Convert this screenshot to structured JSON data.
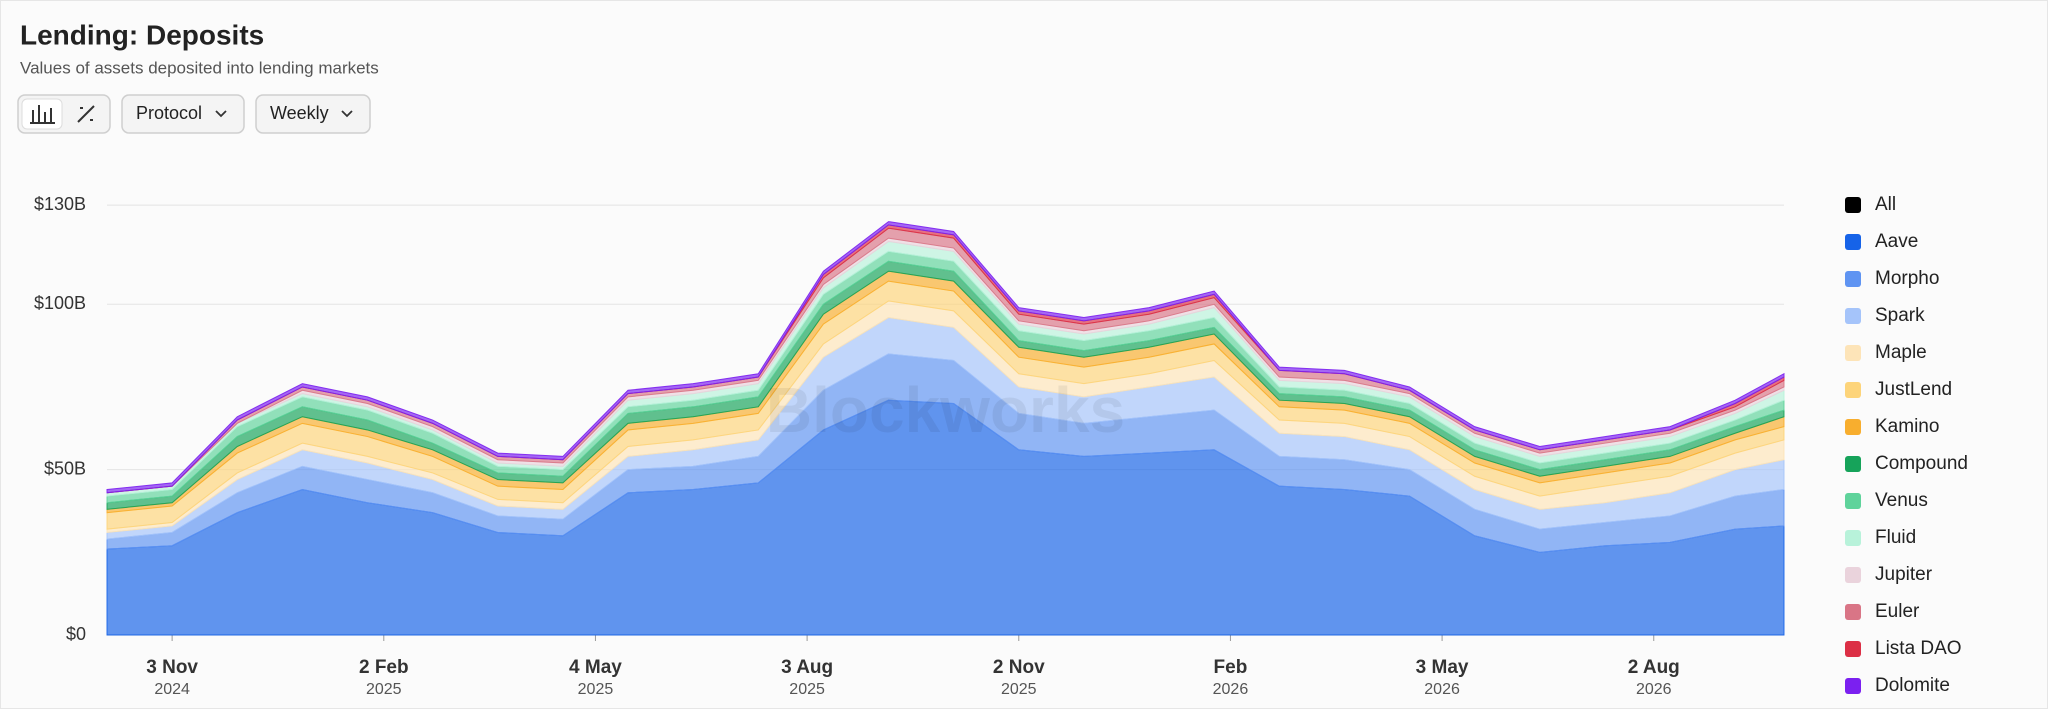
{
  "chart_data": {
    "type": "stacked_area",
    "title": "Lending: Deposits",
    "subtitle": "Values of assets deposited into lending markets",
    "controls": {
      "group": "Protocol",
      "interval": "Weekly"
    },
    "watermark": "Blockworks",
    "legend_all": {
      "name": "All",
      "color": "#000000"
    },
    "x": [
      "2024-10-06",
      "2024-11-03",
      "2024-12-01",
      "2024-12-29",
      "2025-01-26",
      "2025-02-23",
      "2025-03-23",
      "2025-04-20",
      "2025-05-18",
      "2025-06-15",
      "2025-07-13",
      "2025-08-10",
      "2025-09-07",
      "2025-10-05",
      "2025-11-02",
      "2025-11-30",
      "2025-12-28",
      "2026-01-25",
      "2026-02-22",
      "2026-03-22",
      "2026-04-19",
      "2026-05-17",
      "2026-06-14",
      "2026-07-12",
      "2026-08-09",
      "2026-09-06",
      "2026-09-27"
    ],
    "xlim": [
      "2024-10-06",
      "2026-09-27"
    ],
    "xticks": [
      {
        "value": "2024-11-03",
        "label": "3 Nov",
        "sublabel": "2024"
      },
      {
        "value": "2025-02-02",
        "label": "2 Feb",
        "sublabel": "2025"
      },
      {
        "value": "2025-05-04",
        "label": "4 May",
        "sublabel": "2025"
      },
      {
        "value": "2025-08-03",
        "label": "3 Aug",
        "sublabel": "2025"
      },
      {
        "value": "2025-11-02",
        "label": "2 Nov",
        "sublabel": "2025"
      },
      {
        "value": "2026-02-01",
        "label": "Feb",
        "sublabel": "2026"
      },
      {
        "value": "2026-05-03",
        "label": "3 May",
        "sublabel": "2026"
      },
      {
        "value": "2026-08-02",
        "label": "2 Aug",
        "sublabel": "2026"
      }
    ],
    "ylim": [
      0,
      140
    ],
    "yticks": [
      {
        "value": 0,
        "label": "$0"
      },
      {
        "value": 50,
        "label": "$50B"
      },
      {
        "value": 100,
        "label": "$100B"
      },
      {
        "value": 130,
        "label": "$130B"
      }
    ],
    "grid": true,
    "legend": "right",
    "series": [
      {
        "name": "Aave",
        "color": "#1663e8",
        "values": [
          26,
          27,
          37,
          44,
          40,
          37,
          31,
          30,
          43,
          44,
          46,
          62,
          71,
          70,
          56,
          54,
          55,
          56,
          45,
          44,
          42,
          30,
          25,
          27,
          28,
          32,
          33
        ]
      },
      {
        "name": "Morpho",
        "color": "#5f94f2",
        "values": [
          3,
          4,
          6,
          7,
          7,
          6,
          5,
          5,
          7,
          7,
          8,
          12,
          14,
          13,
          11,
          10,
          11,
          12,
          9,
          9,
          8,
          8,
          7,
          7,
          8,
          10,
          11
        ]
      },
      {
        "name": "Spark",
        "color": "#a5c4fa",
        "values": [
          2,
          2,
          4,
          5,
          5,
          4,
          3,
          3,
          4,
          5,
          5,
          10,
          11,
          10,
          8,
          8,
          9,
          10,
          7,
          7,
          6,
          6,
          6,
          6,
          7,
          8,
          9
        ]
      },
      {
        "name": "Maple",
        "color": "#fde4b8",
        "values": [
          1,
          1,
          2,
          2,
          2,
          2,
          2,
          2,
          3,
          3,
          3,
          4,
          5,
          5,
          4,
          4,
          4,
          5,
          4,
          4,
          4,
          4,
          4,
          5,
          5,
          5,
          6
        ]
      },
      {
        "name": "JustLend",
        "color": "#fdd47a",
        "values": [
          5,
          5,
          6,
          6,
          6,
          5,
          4,
          4,
          5,
          5,
          5,
          6,
          6,
          6,
          5,
          5,
          5,
          5,
          4,
          4,
          4,
          4,
          4,
          4,
          4,
          4,
          4
        ]
      },
      {
        "name": "Kamino",
        "color": "#f8ae2e",
        "values": [
          1,
          1,
          2,
          2,
          2,
          2,
          2,
          2,
          2,
          2,
          2,
          3,
          3,
          3,
          3,
          3,
          3,
          3,
          2,
          2,
          2,
          2,
          2,
          2,
          2,
          2,
          3
        ]
      },
      {
        "name": "Compound",
        "color": "#16a35a",
        "values": [
          2,
          2,
          3,
          3,
          3,
          2,
          2,
          2,
          3,
          3,
          3,
          3,
          3,
          3,
          2,
          2,
          2,
          2,
          2,
          2,
          2,
          2,
          2,
          2,
          2,
          2,
          2
        ]
      },
      {
        "name": "Venus",
        "color": "#5fd39b",
        "values": [
          2,
          2,
          3,
          3,
          3,
          3,
          2,
          2,
          2,
          2,
          2,
          3,
          3,
          3,
          3,
          3,
          3,
          3,
          2,
          2,
          2,
          2,
          2,
          2,
          2,
          2,
          3
        ]
      },
      {
        "name": "Fluid",
        "color": "#b8f2da",
        "values": [
          1,
          1,
          1,
          1,
          1,
          1,
          1,
          1,
          2,
          2,
          2,
          2,
          3,
          3,
          2,
          2,
          2,
          3,
          2,
          2,
          2,
          2,
          2,
          2,
          2,
          2,
          3
        ]
      },
      {
        "name": "Jupiter",
        "color": "#ead3dc",
        "values": [
          0,
          0,
          0,
          1,
          1,
          1,
          1,
          1,
          1,
          1,
          1,
          1,
          1,
          1,
          1,
          1,
          1,
          1,
          1,
          1,
          1,
          1,
          1,
          1,
          1,
          1,
          1
        ]
      },
      {
        "name": "Euler",
        "color": "#d97586",
        "values": [
          0,
          0,
          1,
          1,
          1,
          1,
          1,
          1,
          1,
          1,
          1,
          2,
          3,
          3,
          2,
          2,
          2,
          2,
          2,
          2,
          1,
          1,
          1,
          1,
          1,
          1,
          2
        ]
      },
      {
        "name": "Lista DAO",
        "color": "#dc2f45",
        "values": [
          0,
          0,
          0,
          0,
          0,
          0,
          0,
          0,
          0,
          0,
          0,
          1,
          1,
          1,
          1,
          1,
          1,
          1,
          0,
          0,
          0,
          0,
          0,
          0,
          0,
          1,
          1
        ]
      },
      {
        "name": "Dolomite",
        "color": "#7b20f0",
        "values": [
          1,
          1,
          1,
          1,
          1,
          1,
          1,
          1,
          1,
          1,
          1,
          1,
          1,
          1,
          1,
          1,
          1,
          1,
          1,
          1,
          1,
          1,
          1,
          1,
          1,
          1,
          1
        ]
      }
    ]
  }
}
